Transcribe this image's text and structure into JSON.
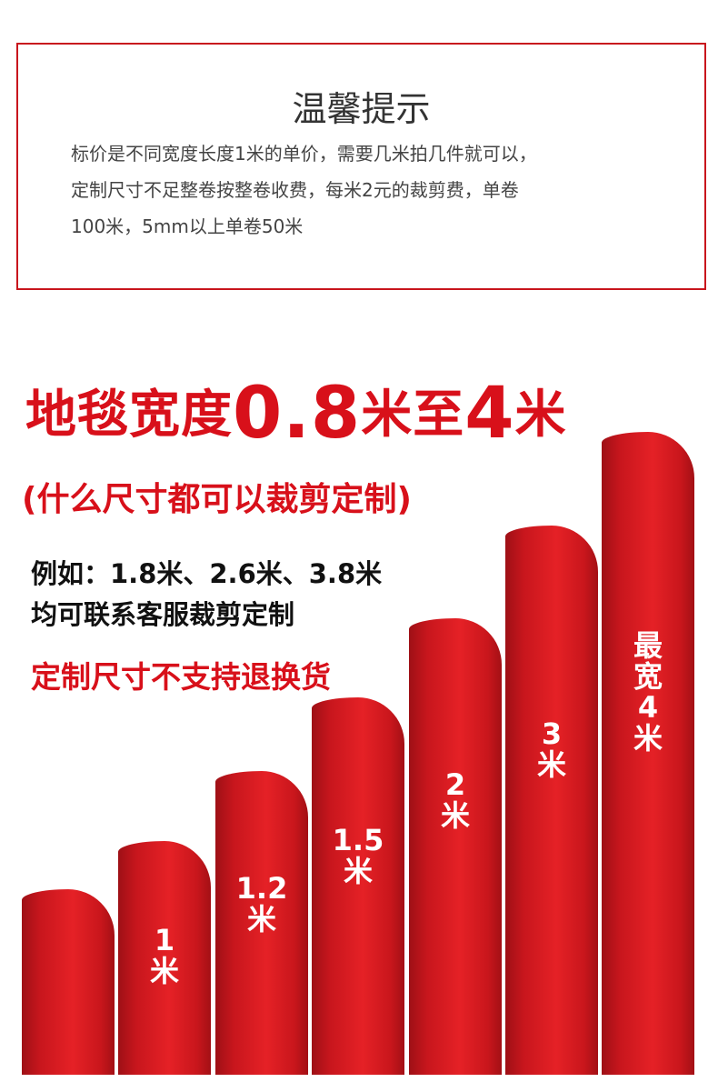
{
  "notice": {
    "title": "温馨提示",
    "lines": [
      "标价是不同宽度长度1米的单价，需要几米拍几件就可以，",
      "定制尺寸不足整卷按整卷收费，每米2元的裁剪费，单卷",
      "100米，5mm以上单卷50米"
    ]
  },
  "headline": {
    "part1": "地毯宽度",
    "num1": "0.8",
    "part2": "米至",
    "num2": "4",
    "part3": "米"
  },
  "subline": "(什么尺寸都可以裁剪定制)",
  "examples": [
    "例如：1.8米、2.6米、3.8米",
    "均可联系客服裁剪定制"
  ],
  "warning": "定制尺寸不支持退换货",
  "rolls": [
    {
      "num": "",
      "unit": ""
    },
    {
      "num": "1",
      "unit": "米"
    },
    {
      "num": "1.2",
      "unit": "米"
    },
    {
      "num": "1.5",
      "unit": "米"
    },
    {
      "num": "2",
      "unit": "米"
    },
    {
      "num": "3",
      "unit": "米"
    },
    {
      "num": "最宽4",
      "unit": "米"
    }
  ],
  "colors": {
    "accent": "#d8101a",
    "border": "#c8161d"
  }
}
